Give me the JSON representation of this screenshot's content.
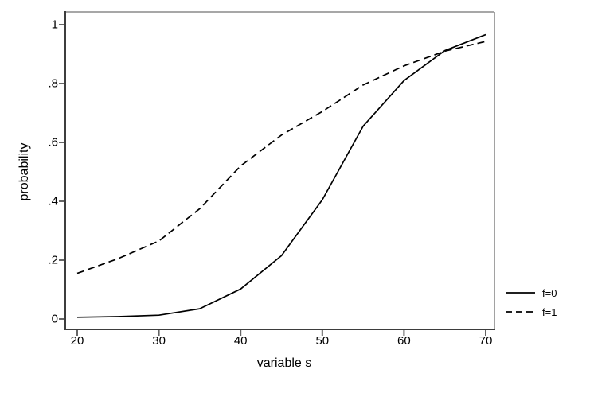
{
  "chart_data": {
    "type": "line",
    "title": "",
    "xlabel": "variable s",
    "ylabel": "probability",
    "x": [
      20,
      25,
      30,
      35,
      40,
      45,
      50,
      55,
      60,
      65,
      70
    ],
    "series": [
      {
        "name": "f=0",
        "style": "solid",
        "values": [
          0.006,
          0.008,
          0.013,
          0.035,
          0.102,
          0.215,
          0.405,
          0.655,
          0.81,
          0.912,
          0.966
        ]
      },
      {
        "name": "f=1",
        "style": "dashed",
        "values": [
          0.155,
          0.205,
          0.265,
          0.375,
          0.52,
          0.625,
          0.705,
          0.795,
          0.86,
          0.91,
          0.943
        ]
      }
    ],
    "xticks": {
      "values": [
        20,
        30,
        40,
        50,
        60,
        70
      ],
      "labels": [
        "20",
        "30",
        "40",
        "50",
        "60",
        "70"
      ]
    },
    "yticks": {
      "values": [
        0,
        0.2,
        0.4,
        0.6,
        0.8,
        1
      ],
      "labels": [
        "0",
        ".2",
        ".4",
        ".6",
        ".8",
        "1"
      ]
    },
    "xlim": [
      18.6,
      71.1
    ],
    "ylim": [
      -0.035,
      1.043
    ],
    "grid": false,
    "legend_position": "right-outside",
    "colors": {
      "curve": "#000000",
      "axis_dark": "#3d3d3d",
      "box_gray": "#8a8a8a",
      "tick": "#666666",
      "background": "#ffffff"
    }
  },
  "legend": {
    "entries": [
      {
        "label": "f=0",
        "style": "solid"
      },
      {
        "label": "f=1",
        "style": "dashed"
      }
    ]
  }
}
